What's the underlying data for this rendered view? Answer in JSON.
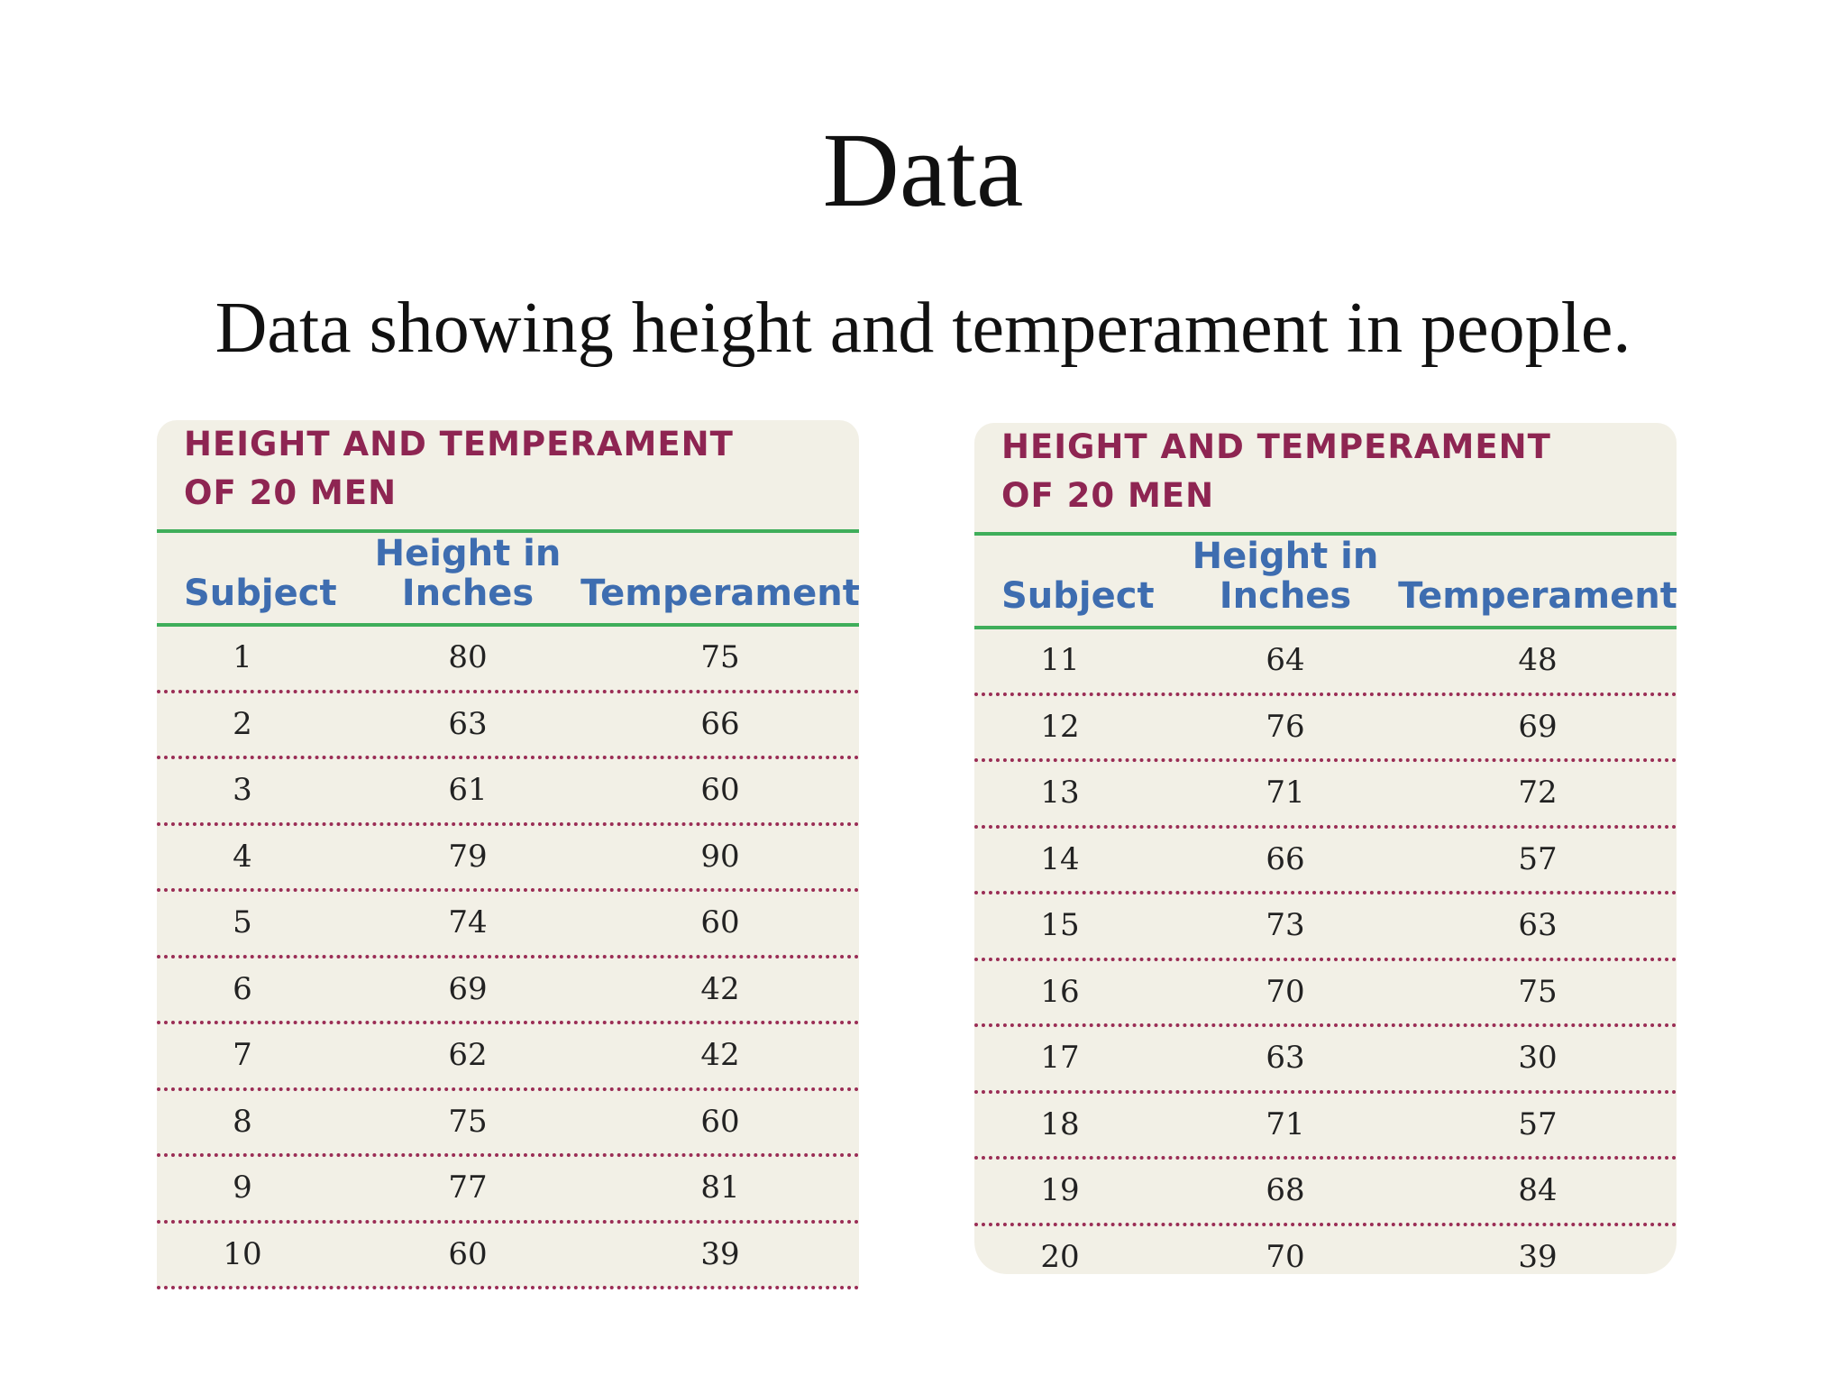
{
  "title": "Data",
  "subtitle": "Data showing height and temperament in people.",
  "tables": [
    {
      "title_line1": "HEIGHT AND TEMPERAMENT",
      "title_line2": "OF 20 MEN",
      "headers": {
        "subject": "Subject",
        "height_line1": "Height in",
        "height_line2": "Inches",
        "temperament": "Temperament"
      },
      "rows": [
        {
          "subject": "1",
          "height": "80",
          "temperament": "75"
        },
        {
          "subject": "2",
          "height": "63",
          "temperament": "66"
        },
        {
          "subject": "3",
          "height": "61",
          "temperament": "60"
        },
        {
          "subject": "4",
          "height": "79",
          "temperament": "90"
        },
        {
          "subject": "5",
          "height": "74",
          "temperament": "60"
        },
        {
          "subject": "6",
          "height": "69",
          "temperament": "42"
        },
        {
          "subject": "7",
          "height": "62",
          "temperament": "42"
        },
        {
          "subject": "8",
          "height": "75",
          "temperament": "60"
        },
        {
          "subject": "9",
          "height": "77",
          "temperament": "81"
        },
        {
          "subject": "10",
          "height": "60",
          "temperament": "39"
        }
      ]
    },
    {
      "title_line1": "HEIGHT AND TEMPERAMENT",
      "title_line2": "OF 20 MEN",
      "headers": {
        "subject": "Subject",
        "height_line1": "Height in",
        "height_line2": "Inches",
        "temperament": "Temperament"
      },
      "rows": [
        {
          "subject": "11",
          "height": "64",
          "temperament": "48"
        },
        {
          "subject": "12",
          "height": "76",
          "temperament": "69"
        },
        {
          "subject": "13",
          "height": "71",
          "temperament": "72"
        },
        {
          "subject": "14",
          "height": "66",
          "temperament": "57"
        },
        {
          "subject": "15",
          "height": "73",
          "temperament": "63"
        },
        {
          "subject": "16",
          "height": "70",
          "temperament": "75"
        },
        {
          "subject": "17",
          "height": "63",
          "temperament": "30"
        },
        {
          "subject": "18",
          "height": "71",
          "temperament": "57"
        },
        {
          "subject": "19",
          "height": "68",
          "temperament": "84"
        },
        {
          "subject": "20",
          "height": "70",
          "temperament": "39"
        }
      ]
    }
  ],
  "colors": {
    "title_maroon": "#8e2552",
    "header_blue": "#3e6db0",
    "rule_green": "#3fae5a",
    "card_bg": "#f2f0e6",
    "dots": "#9a2d55"
  }
}
